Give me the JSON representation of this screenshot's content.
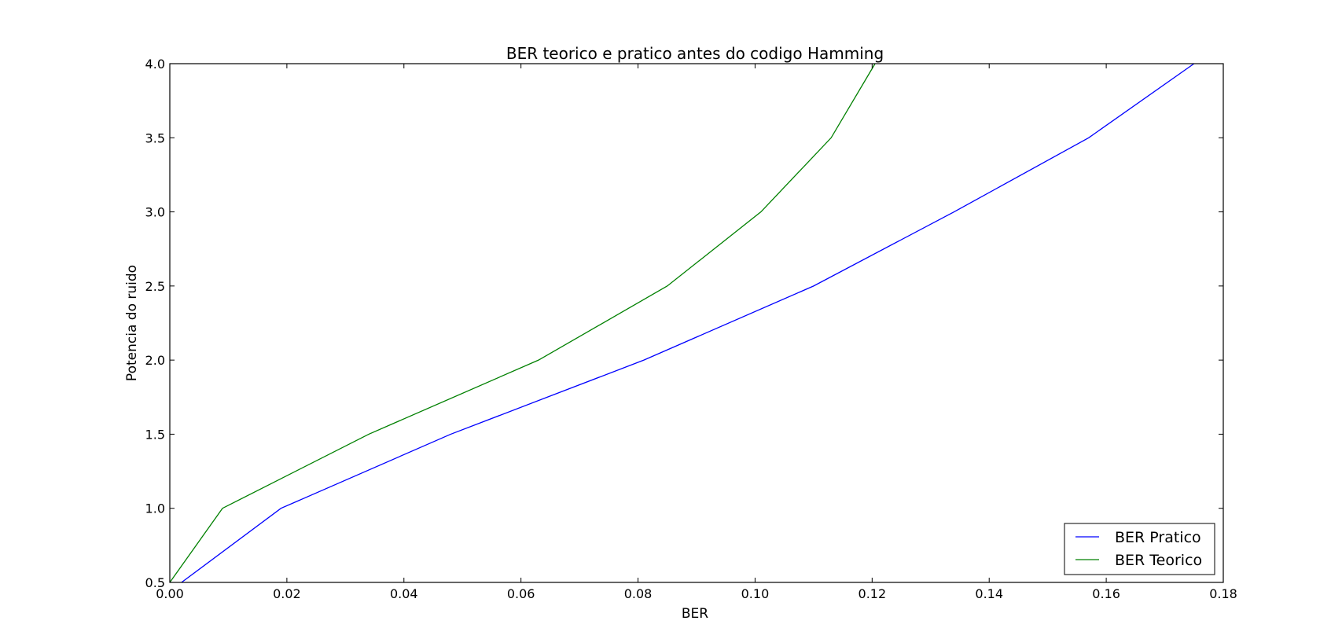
{
  "chart_data": {
    "type": "line",
    "title": "BER teorico e pratico antes do codigo Hamming",
    "xlabel": "BER",
    "ylabel": "Potencia do ruido",
    "xlim": [
      0.0,
      0.18
    ],
    "ylim": [
      0.5,
      4.0
    ],
    "xticks": [
      "0.00",
      "0.02",
      "0.04",
      "0.06",
      "0.08",
      "0.10",
      "0.12",
      "0.14",
      "0.16",
      "0.18"
    ],
    "yticks": [
      "0.5",
      "1.0",
      "1.5",
      "2.0",
      "2.5",
      "3.0",
      "3.5",
      "4.0"
    ],
    "grid": false,
    "legend_position": "bottom-right",
    "series": [
      {
        "name": "BER Pratico",
        "color": "#0000ff",
        "points": [
          [
            0.002,
            0.5
          ],
          [
            0.019,
            1.0
          ],
          [
            0.048,
            1.5
          ],
          [
            0.081,
            2.0
          ],
          [
            0.11,
            2.5
          ],
          [
            0.134,
            3.0
          ],
          [
            0.157,
            3.5
          ],
          [
            0.175,
            4.0
          ]
        ]
      },
      {
        "name": "BER Teorico",
        "color": "#008000",
        "points": [
          [
            0.0,
            0.5
          ],
          [
            0.009,
            1.0
          ],
          [
            0.034,
            1.5
          ],
          [
            0.063,
            2.0
          ],
          [
            0.085,
            2.5
          ],
          [
            0.101,
            3.0
          ],
          [
            0.113,
            3.5
          ],
          [
            0.1205,
            4.0
          ]
        ]
      }
    ]
  }
}
